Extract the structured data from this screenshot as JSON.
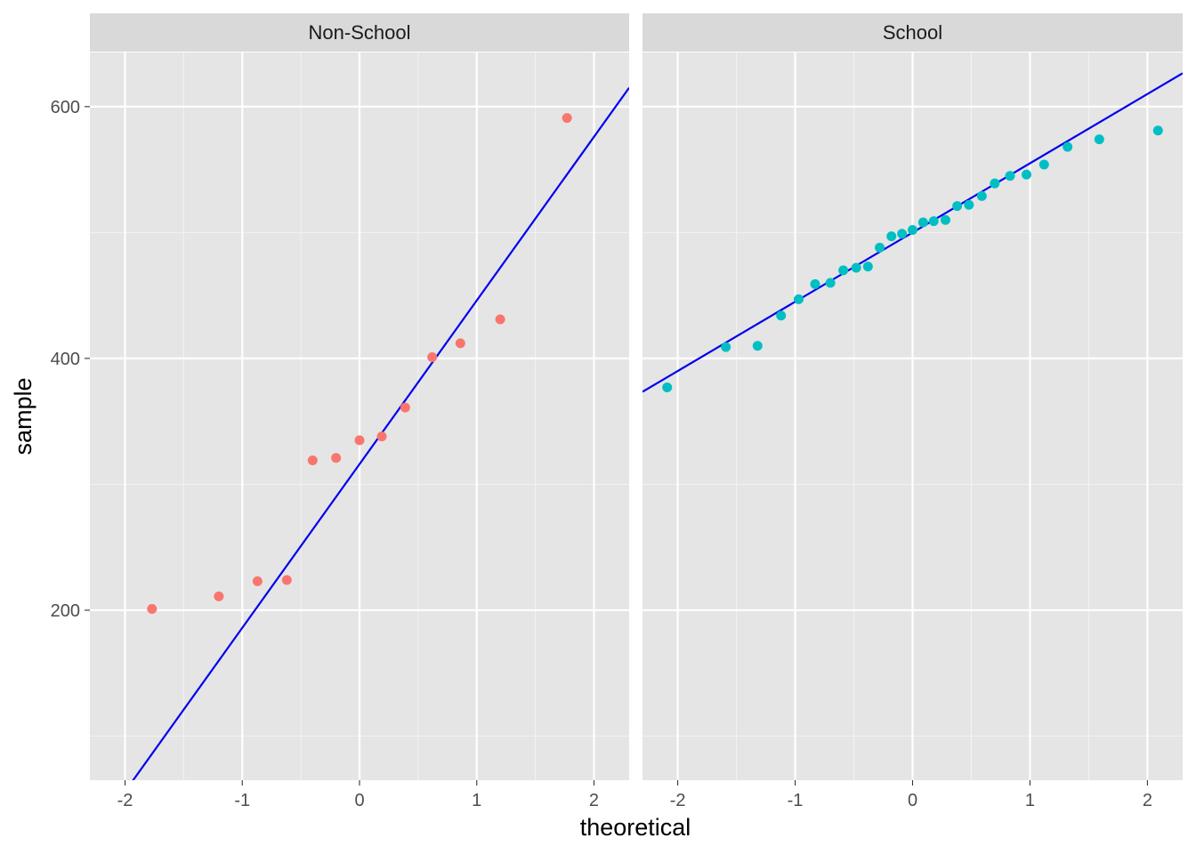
{
  "chart_data": {
    "type": "scatter",
    "kind": "qq-plot with reference line, faceted",
    "xlabel": "theoretical",
    "ylabel": "sample",
    "xlim": [
      -2.3,
      2.3
    ],
    "ylim": [
      65,
      643
    ],
    "x_ticks": [
      -2,
      -1,
      0,
      1,
      2
    ],
    "x_tick_labels": [
      "-2",
      "-1",
      "0",
      "1",
      "2"
    ],
    "y_ticks": [
      200,
      400,
      600
    ],
    "y_tick_labels": [
      "200",
      "400",
      "600"
    ],
    "grid": true,
    "background": "#e5e5e5",
    "strip_color": "#d9d9d9",
    "line_color": "#0000ee",
    "facets": [
      {
        "label": "Non-School",
        "point_color": "#f8766d",
        "line": {
          "intercept": 316,
          "slope": 130
        },
        "points": [
          {
            "x": -1.77,
            "y": 201
          },
          {
            "x": -1.2,
            "y": 211
          },
          {
            "x": -0.87,
            "y": 223
          },
          {
            "x": -0.62,
            "y": 224
          },
          {
            "x": -0.4,
            "y": 319
          },
          {
            "x": -0.2,
            "y": 321
          },
          {
            "x": 0.0,
            "y": 335
          },
          {
            "x": 0.19,
            "y": 338
          },
          {
            "x": 0.39,
            "y": 361
          },
          {
            "x": 0.62,
            "y": 401
          },
          {
            "x": 0.86,
            "y": 412
          },
          {
            "x": 1.2,
            "y": 431
          },
          {
            "x": 1.77,
            "y": 591
          }
        ]
      },
      {
        "label": "School",
        "point_color": "#00bfc4",
        "line": {
          "intercept": 500,
          "slope": 55
        },
        "points": [
          {
            "x": -2.09,
            "y": 377
          },
          {
            "x": -1.59,
            "y": 409
          },
          {
            "x": -1.32,
            "y": 410
          },
          {
            "x": -1.12,
            "y": 434
          },
          {
            "x": -0.97,
            "y": 447
          },
          {
            "x": -0.83,
            "y": 459
          },
          {
            "x": -0.7,
            "y": 460
          },
          {
            "x": -0.59,
            "y": 470
          },
          {
            "x": -0.48,
            "y": 472
          },
          {
            "x": -0.38,
            "y": 473
          },
          {
            "x": -0.28,
            "y": 488
          },
          {
            "x": -0.18,
            "y": 497
          },
          {
            "x": -0.09,
            "y": 499
          },
          {
            "x": 0.0,
            "y": 502
          },
          {
            "x": 0.09,
            "y": 508
          },
          {
            "x": 0.18,
            "y": 509
          },
          {
            "x": 0.28,
            "y": 510
          },
          {
            "x": 0.38,
            "y": 521
          },
          {
            "x": 0.48,
            "y": 522
          },
          {
            "x": 0.59,
            "y": 529
          },
          {
            "x": 0.7,
            "y": 539
          },
          {
            "x": 0.83,
            "y": 545
          },
          {
            "x": 0.97,
            "y": 546
          },
          {
            "x": 1.12,
            "y": 554
          },
          {
            "x": 1.32,
            "y": 568
          },
          {
            "x": 1.59,
            "y": 574
          },
          {
            "x": 2.09,
            "y": 581
          }
        ]
      }
    ]
  }
}
